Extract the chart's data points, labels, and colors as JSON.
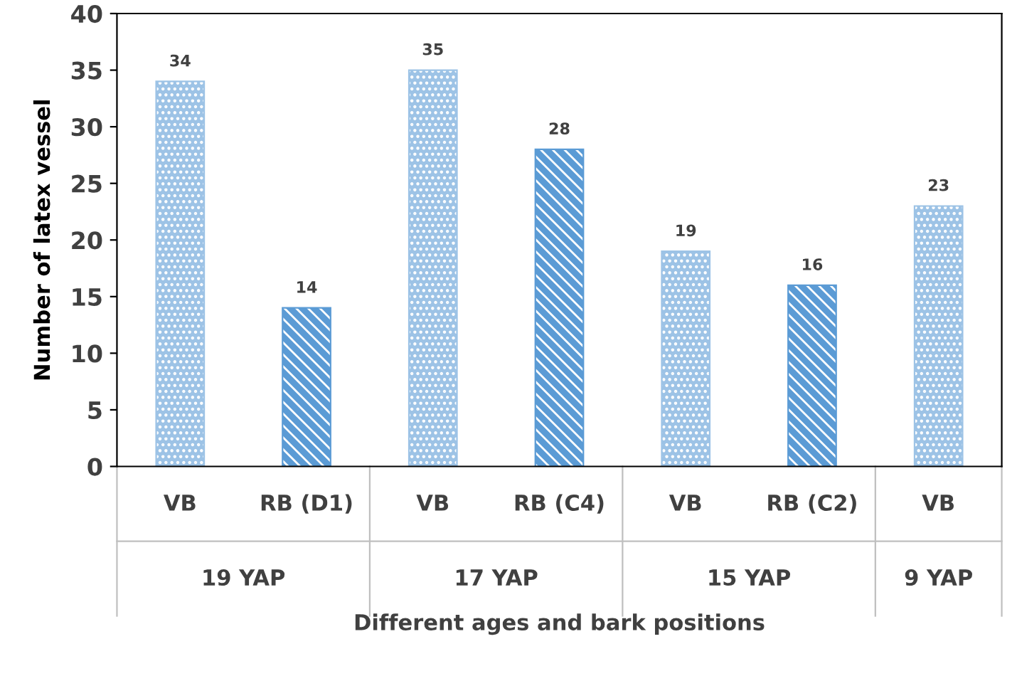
{
  "chart_data": {
    "type": "bar",
    "xlabel": "Different ages and bark positions",
    "ylabel": "Number of latex vessel",
    "categories": [
      "VB",
      "RB (D1)",
      "VB",
      "RB (C4)",
      "VB",
      "RB (C2)",
      "VB"
    ],
    "values": [
      34,
      14,
      35,
      28,
      19,
      16,
      23
    ],
    "colors": [
      "#9dc3e6",
      "#5b9bd5",
      "#9dc3e6",
      "#5b9bd5",
      "#9dc3e6",
      "#5b9bd5",
      "#9dc3e6"
    ],
    "data_labels": true,
    "ylim": [
      0,
      40
    ],
    "yticks": [
      0,
      5,
      10,
      15,
      20,
      25,
      30,
      35,
      40
    ],
    "grid": false,
    "legend": false,
    "annotations": [
      "19 YAP",
      "17 YAP",
      "15 YAP",
      "9 YAP"
    ]
  }
}
